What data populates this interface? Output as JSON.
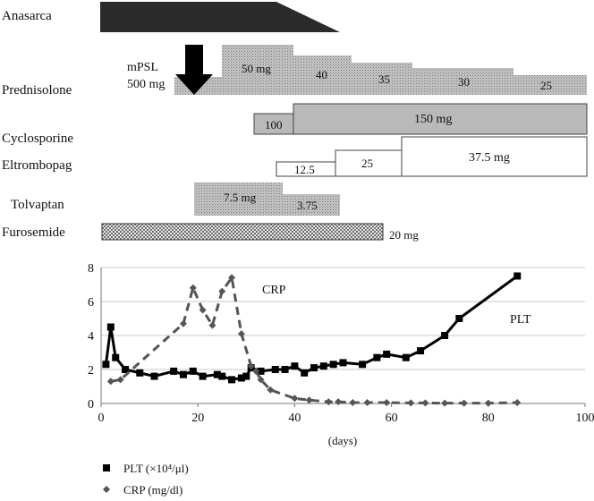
{
  "rows": {
    "anasarca": "Anasarca",
    "prednisolone": "Prednisolone",
    "cyclosporine": "Cyclosporine",
    "eltrombopag": "Eltrombopag",
    "tolvaptan": "Tolvaptan",
    "furosemide": "Furosemide"
  },
  "prednisolone": {
    "mpsl_line1": "mPSL",
    "mpsl_line2": "500 mg",
    "steps": [
      "50 mg",
      "40",
      "35",
      "30",
      "25"
    ]
  },
  "cyclosporine": {
    "doses": [
      "100",
      "150 mg"
    ]
  },
  "eltrombopag": {
    "doses": [
      "12.5",
      "25",
      "37.5 mg"
    ]
  },
  "tolvaptan": {
    "doses": [
      "7.5 mg",
      "3.75"
    ]
  },
  "furosemide": {
    "dose": "20 mg"
  },
  "chart_data": {
    "type": "line",
    "xlabel": "(days)",
    "xlim": [
      0,
      100
    ],
    "ylim": [
      0,
      8
    ],
    "x_ticks": [
      0,
      20,
      40,
      60,
      80,
      100
    ],
    "y_ticks": [
      0,
      2,
      4,
      6,
      8
    ],
    "grid": true,
    "legend_position": "bottom-left",
    "series": [
      {
        "name": "PLT (×10⁴/μl)",
        "label": "PLT",
        "color": "#000000",
        "marker": "square",
        "line": "solid",
        "points": [
          [
            1,
            2.3
          ],
          [
            2,
            4.5
          ],
          [
            3,
            2.7
          ],
          [
            5,
            2.0
          ],
          [
            8,
            1.8
          ],
          [
            11,
            1.6
          ],
          [
            15,
            1.9
          ],
          [
            17,
            1.7
          ],
          [
            19,
            1.9
          ],
          [
            21,
            1.6
          ],
          [
            24,
            1.7
          ],
          [
            25,
            1.6
          ],
          [
            27,
            1.4
          ],
          [
            29,
            1.5
          ],
          [
            30,
            1.6
          ],
          [
            31,
            2.1
          ],
          [
            33,
            1.9
          ],
          [
            36,
            2.0
          ],
          [
            38,
            2.0
          ],
          [
            40,
            2.2
          ],
          [
            42,
            1.8
          ],
          [
            44,
            2.1
          ],
          [
            46,
            2.2
          ],
          [
            48,
            2.3
          ],
          [
            50,
            2.4
          ],
          [
            54,
            2.3
          ],
          [
            57,
            2.7
          ],
          [
            59,
            2.9
          ],
          [
            63,
            2.7
          ],
          [
            66,
            3.1
          ],
          [
            71,
            4.0
          ],
          [
            74,
            5.0
          ],
          [
            86,
            7.5
          ]
        ]
      },
      {
        "name": "CRP (mg/dl)",
        "label": "CRP",
        "color": "#555555",
        "marker": "diamond",
        "line": "dashed",
        "points": [
          [
            2,
            1.3
          ],
          [
            4,
            1.4
          ],
          [
            17,
            4.7
          ],
          [
            19,
            6.8
          ],
          [
            21,
            5.5
          ],
          [
            23,
            4.6
          ],
          [
            25,
            6.6
          ],
          [
            27,
            7.4
          ],
          [
            29,
            4.1
          ],
          [
            31,
            2.2
          ],
          [
            32,
            1.9
          ],
          [
            33,
            1.4
          ],
          [
            35,
            0.8
          ],
          [
            40,
            0.3
          ],
          [
            43,
            0.2
          ],
          [
            47,
            0.1
          ],
          [
            49,
            0.1
          ],
          [
            52,
            0.05
          ],
          [
            55,
            0.05
          ],
          [
            59,
            0.05
          ],
          [
            64,
            0.03
          ],
          [
            67,
            0.03
          ],
          [
            71,
            0.02
          ],
          [
            75,
            0.02
          ],
          [
            80,
            0.02
          ],
          [
            86,
            0.05
          ]
        ]
      }
    ]
  }
}
